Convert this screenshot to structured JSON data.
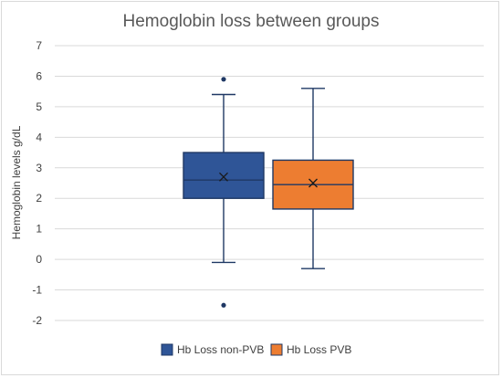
{
  "chart_data": {
    "type": "box",
    "title": "Hemoglobin loss between groups",
    "ylabel": "Hemoglobin levels g/dL",
    "ylim": [
      -2,
      7
    ],
    "yticks": [
      "-2",
      "-1",
      "0",
      "1",
      "2",
      "3",
      "4",
      "5",
      "6",
      "7"
    ],
    "grid": true,
    "legend_position": "bottom",
    "series": [
      {
        "name": "Hb Loss non-PVB",
        "color": "#2f5597",
        "whisker_low": -0.1,
        "q1": 2.0,
        "median": 2.6,
        "q3": 3.5,
        "whisker_high": 5.4,
        "mean": 2.7,
        "outliers": [
          5.9,
          -1.5
        ]
      },
      {
        "name": "Hb Loss PVB",
        "color": "#ed7d31",
        "whisker_low": -0.3,
        "q1": 1.65,
        "median": 2.45,
        "q3": 3.25,
        "whisker_high": 5.6,
        "mean": 2.5,
        "outliers": []
      }
    ]
  }
}
